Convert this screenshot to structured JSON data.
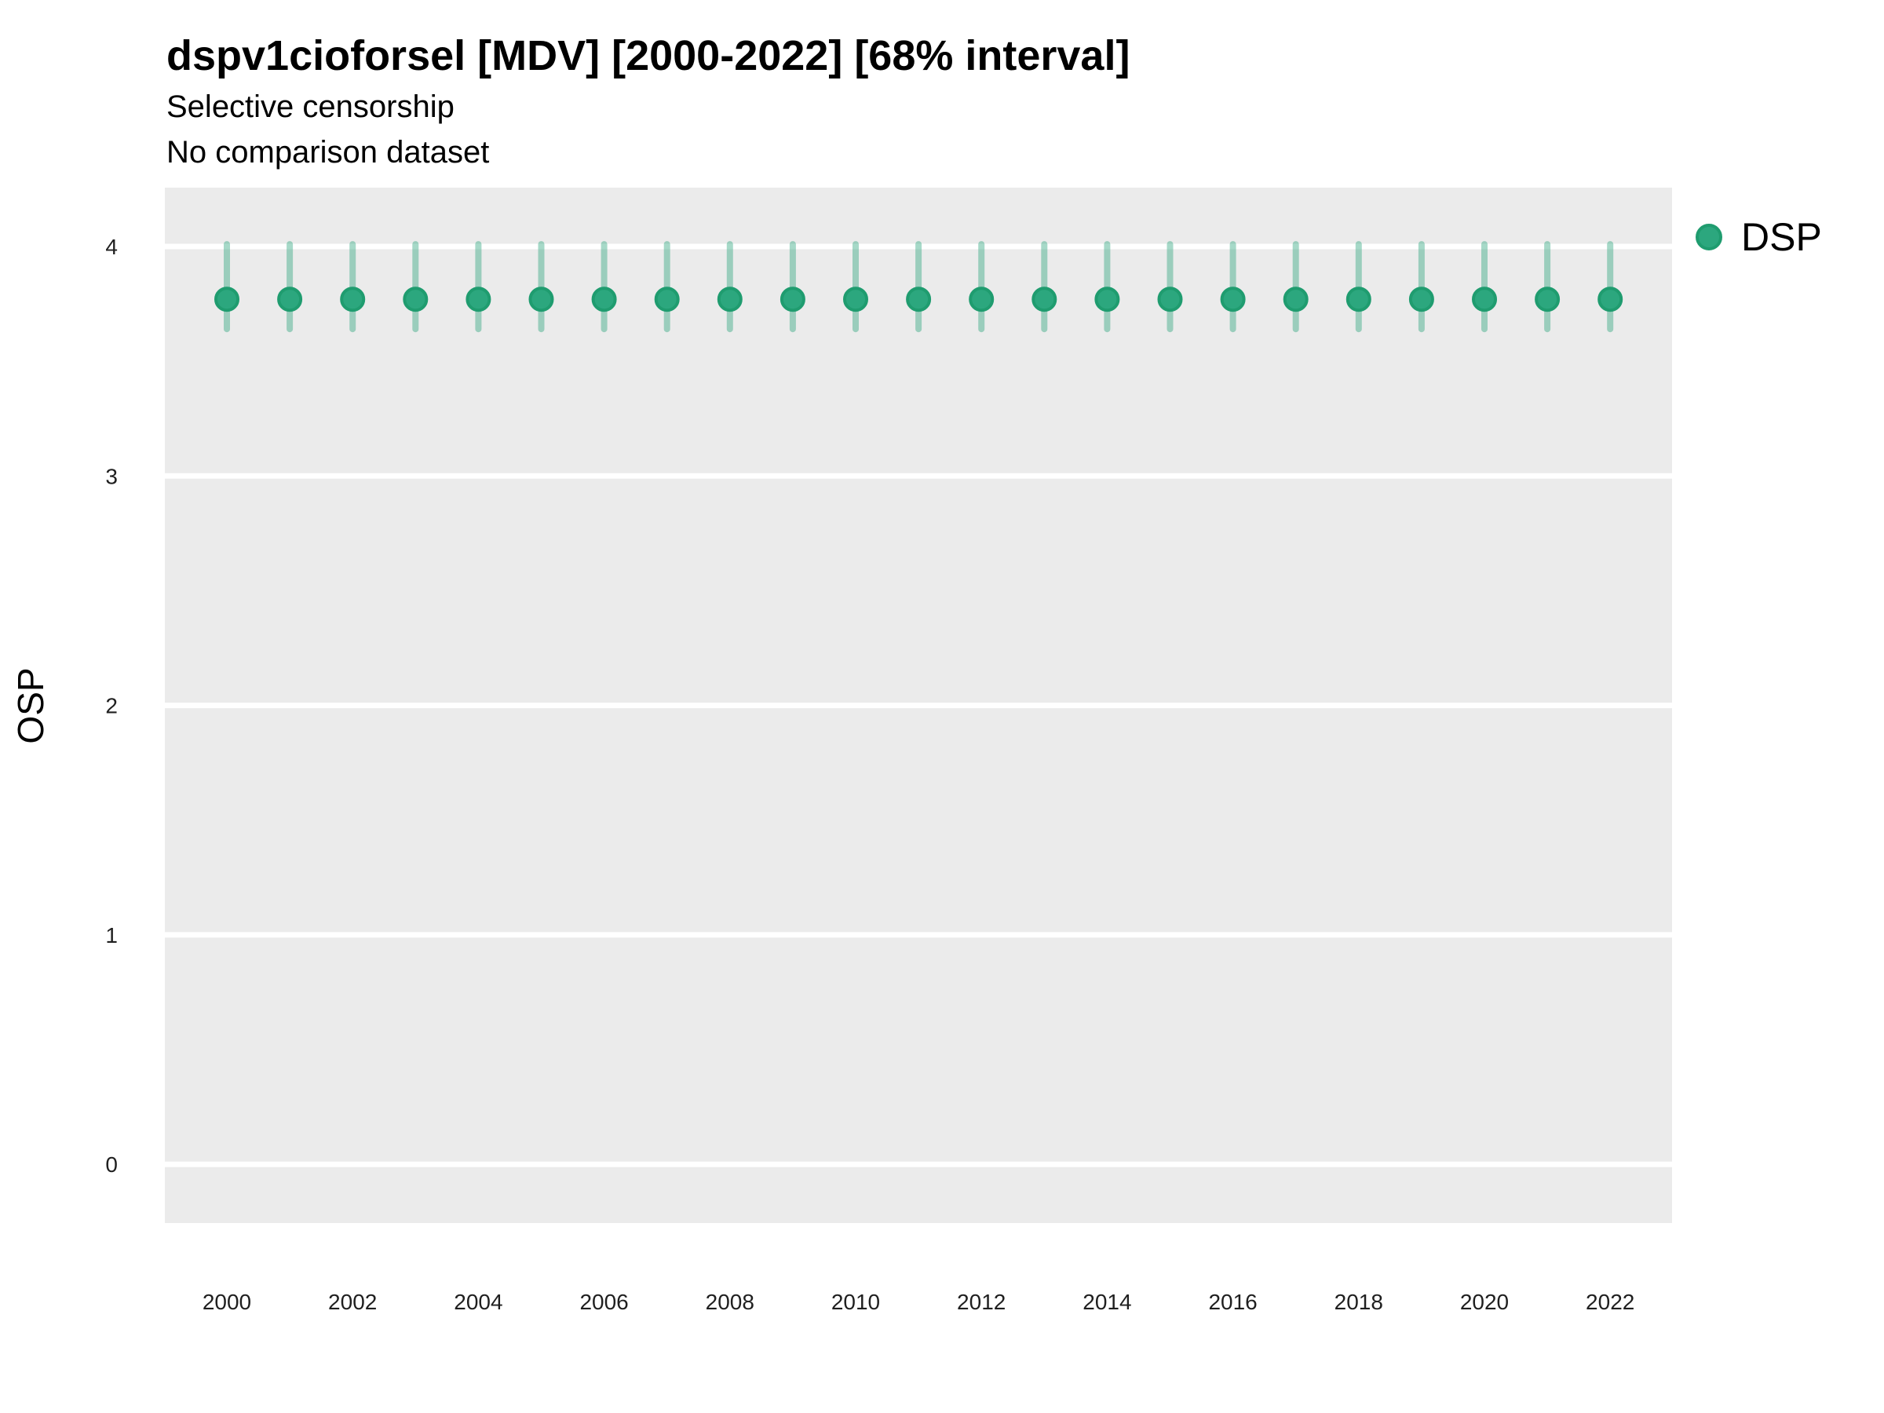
{
  "header": {
    "title": "dspv1cioforsel [MDV] [2000-2022] [68% interval]",
    "subtitle1": "Selective censorship",
    "subtitle2": "No comparison dataset"
  },
  "legend": {
    "items": [
      {
        "label": "DSP",
        "color": "#2CA77E",
        "ring_color": "#1F9C6F"
      }
    ]
  },
  "axes": {
    "y_label": "OSP",
    "x_label": "",
    "y_tick_labels": [
      "0",
      "1",
      "2",
      "3",
      "4"
    ],
    "x_tick_labels": [
      "2000",
      "2002",
      "2004",
      "2006",
      "2008",
      "2010",
      "2012",
      "2014",
      "2016",
      "2018",
      "2020",
      "2022"
    ]
  },
  "chart_data": {
    "type": "scatter",
    "title": "dspv1cioforsel [MDV] [2000-2022] [68% interval]",
    "subtitle": [
      "Selective censorship",
      "No comparison dataset"
    ],
    "xlabel": "",
    "ylabel": "OSP",
    "interval": "68%",
    "grid": "major-horizontal-white-on-gray",
    "legend_position": "right-top",
    "xlim": [
      1999,
      2023
    ],
    "ylim": [
      -0.26,
      4.25
    ],
    "x_ticks": [
      2000,
      2002,
      2004,
      2006,
      2008,
      2010,
      2012,
      2014,
      2016,
      2018,
      2020,
      2022
    ],
    "y_ticks": [
      0,
      1,
      2,
      3,
      4
    ],
    "series": [
      {
        "name": "DSP",
        "x": [
          2000,
          2001,
          2002,
          2003,
          2004,
          2005,
          2006,
          2007,
          2008,
          2009,
          2010,
          2011,
          2012,
          2013,
          2014,
          2015,
          2016,
          2017,
          2018,
          2019,
          2020,
          2021,
          2022
        ],
        "y": [
          3.77,
          3.77,
          3.77,
          3.77,
          3.77,
          3.77,
          3.77,
          3.77,
          3.77,
          3.77,
          3.77,
          3.77,
          3.77,
          3.77,
          3.77,
          3.77,
          3.77,
          3.77,
          3.77,
          3.77,
          3.77,
          3.77,
          3.77
        ],
        "y_lo": [
          3.64,
          3.64,
          3.64,
          3.64,
          3.64,
          3.64,
          3.64,
          3.64,
          3.64,
          3.64,
          3.64,
          3.64,
          3.64,
          3.64,
          3.64,
          3.64,
          3.64,
          3.64,
          3.64,
          3.64,
          3.64,
          3.64,
          3.64
        ],
        "y_hi": [
          4.01,
          4.01,
          4.01,
          4.01,
          4.01,
          4.01,
          4.01,
          4.01,
          4.01,
          4.01,
          4.01,
          4.01,
          4.01,
          4.01,
          4.01,
          4.01,
          4.01,
          4.01,
          4.01,
          4.01,
          4.01,
          4.01,
          4.01
        ]
      }
    ],
    "colors": {
      "point_fill": "#2CA77E",
      "point_stroke": "#1F9C6F",
      "interval": "rgba(44, 164, 124, 0.42)",
      "panel_background": "#EBEBEB",
      "gridline": "#FFFFFF",
      "title_text": "#000000",
      "axis_text": "#1F1F1F"
    }
  }
}
